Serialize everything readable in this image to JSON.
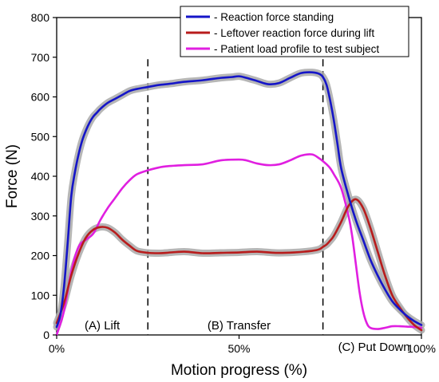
{
  "chart_data": {
    "type": "line",
    "xlabel": "Motion progress (%)",
    "ylabel": "Force (N)",
    "xlim": [
      0,
      100
    ],
    "ylim": [
      0,
      800
    ],
    "x_ticks": [
      0,
      50,
      100
    ],
    "x_tick_labels": [
      "0%",
      "50%",
      "100%"
    ],
    "y_ticks": [
      0,
      100,
      200,
      300,
      400,
      500,
      600,
      700,
      800
    ],
    "grid": false,
    "legend_position": "top-right",
    "phase_boundaries": [
      25,
      73
    ],
    "phase_labels": [
      {
        "text": "(A) Lift",
        "x": 12.5
      },
      {
        "text": "(B) Transfer",
        "x": 50
      },
      {
        "text": "(C) Put Down",
        "x": 87
      }
    ],
    "series": [
      {
        "name": "- Reaction force standing",
        "color": "#1515c8",
        "band": true,
        "x": [
          0,
          1,
          2,
          3,
          4,
          5,
          6,
          7,
          8,
          9,
          10,
          11,
          12,
          14,
          16,
          18,
          20,
          22,
          25,
          28,
          31,
          35,
          40,
          45,
          48,
          50,
          52,
          55,
          58,
          61,
          64,
          67,
          70,
          72,
          73,
          74,
          75,
          76,
          77,
          78,
          80,
          82,
          84,
          86,
          88,
          90,
          92,
          94,
          96,
          98,
          100
        ],
        "y": [
          20,
          50,
          120,
          230,
          350,
          410,
          455,
          490,
          515,
          535,
          550,
          560,
          570,
          585,
          595,
          605,
          615,
          620,
          625,
          630,
          633,
          638,
          642,
          648,
          650,
          652,
          648,
          640,
          632,
          635,
          648,
          660,
          662,
          658,
          650,
          630,
          590,
          540,
          480,
          420,
          350,
          290,
          240,
          190,
          150,
          115,
          85,
          65,
          48,
          35,
          25
        ]
      },
      {
        "name": "- Leftover reaction force during lift",
        "color": "#b81c1c",
        "band": true,
        "x": [
          0,
          2,
          4,
          6,
          8,
          10,
          12,
          14,
          16,
          18,
          20,
          22,
          25,
          28,
          30,
          35,
          40,
          45,
          50,
          55,
          60,
          65,
          70,
          72,
          73,
          74,
          75,
          76,
          78,
          80,
          82,
          84,
          86,
          88,
          90,
          92,
          94,
          96,
          98,
          100
        ],
        "y": [
          30,
          80,
          150,
          205,
          245,
          265,
          272,
          270,
          258,
          240,
          225,
          212,
          207,
          206,
          207,
          210,
          206,
          207,
          208,
          210,
          207,
          208,
          212,
          216,
          222,
          228,
          238,
          250,
          285,
          325,
          342,
          320,
          270,
          210,
          150,
          100,
          70,
          45,
          25,
          12
        ]
      },
      {
        "name": "- Patient load profile to test subject",
        "color": "#e01fe0",
        "band": false,
        "x": [
          0,
          2,
          4,
          6,
          8,
          10,
          12,
          14,
          16,
          18,
          20,
          22,
          25,
          28,
          30,
          35,
          40,
          45,
          50,
          52,
          55,
          58,
          61,
          64,
          67,
          70,
          72,
          73,
          74,
          75,
          76,
          78,
          80,
          81,
          82,
          83,
          84,
          85,
          86,
          88,
          90,
          92,
          94,
          96,
          98,
          100
        ],
        "y": [
          0,
          60,
          160,
          222,
          240,
          255,
          290,
          320,
          345,
          370,
          390,
          405,
          415,
          422,
          425,
          428,
          430,
          440,
          442,
          440,
          432,
          428,
          430,
          440,
          452,
          455,
          445,
          438,
          430,
          420,
          405,
          370,
          300,
          250,
          180,
          110,
          60,
          30,
          18,
          15,
          18,
          22,
          22,
          21,
          20,
          18
        ]
      }
    ]
  }
}
